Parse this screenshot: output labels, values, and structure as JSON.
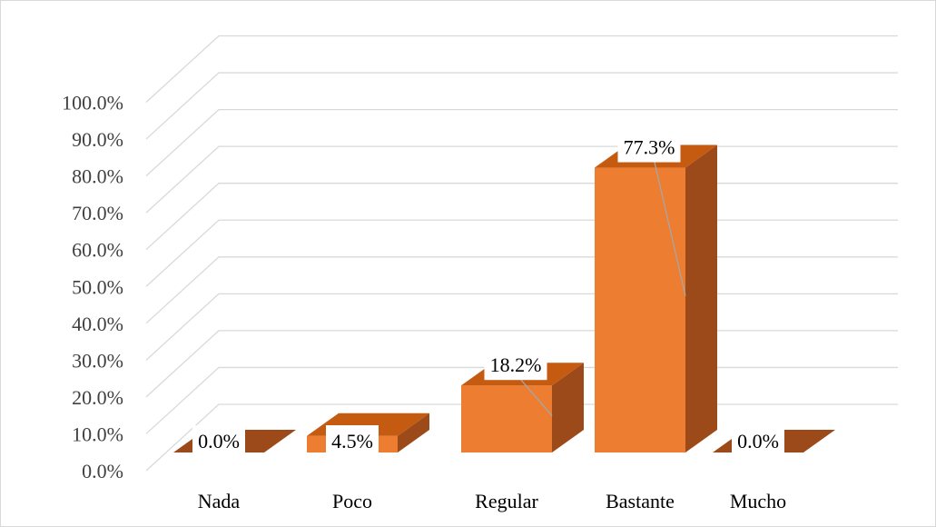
{
  "chart_data": {
    "type": "bar",
    "categories": [
      "Nada",
      "Poco",
      "Regular",
      "Bastante",
      "Mucho"
    ],
    "values": [
      0.0,
      4.5,
      18.2,
      77.3,
      0.0
    ],
    "data_labels": [
      "0.0%",
      "4.5%",
      "18.2%",
      "77.3%",
      "0.0%"
    ],
    "y_ticks": [
      "0.0%",
      "10.0%",
      "20.0%",
      "30.0%",
      "40.0%",
      "50.0%",
      "60.0%",
      "70.0%",
      "80.0%",
      "90.0%",
      "100.0%"
    ],
    "ylim": [
      0,
      100
    ],
    "grid": true,
    "legend": "none",
    "style": "3d-column",
    "colors": {
      "front": "#ed7d31",
      "side": "#9c4a1a",
      "top": "#c55a11"
    }
  }
}
